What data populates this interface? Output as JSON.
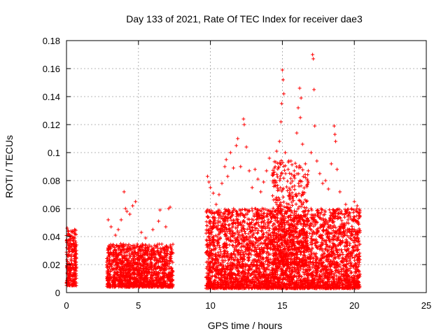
{
  "chart_data": {
    "type": "scatter",
    "title": "Day 133 of 2021, Rate Of TEC Index for receiver dae3",
    "xlabel": "GPS time / hours",
    "ylabel": "ROTI / TECUs",
    "xlim": [
      0,
      25
    ],
    "ylim": [
      0,
      0.18
    ],
    "xticks": [
      "0",
      "5",
      "10",
      "15",
      "20",
      "25"
    ],
    "yticks": [
      "0",
      "0.02",
      "0.04",
      "0.06",
      "0.08",
      "0.1",
      "0.12",
      "0.14",
      "0.16",
      "0.18"
    ],
    "grid": true,
    "marker": "+",
    "color": "#ff0000",
    "clusters": [
      {
        "x_range": [
          0.0,
          0.7
        ],
        "y_range": [
          0.005,
          0.045
        ],
        "density": 260
      },
      {
        "x_range": [
          2.8,
          7.4
        ],
        "y_range": [
          0.004,
          0.035
        ],
        "density": 1400
      },
      {
        "x_range": [
          9.7,
          20.4
        ],
        "y_range": [
          0.003,
          0.06
        ],
        "density": 3800
      },
      {
        "x_range": [
          14.3,
          16.8
        ],
        "y_range": [
          0.02,
          0.095
        ],
        "density": 500
      }
    ],
    "series": [
      {
        "name": "",
        "values": [
          [
            0.05,
            0.046
          ],
          [
            0.1,
            0.044
          ],
          [
            0.15,
            0.041
          ],
          [
            0.25,
            0.038
          ],
          [
            0.3,
            0.035
          ],
          [
            0.2,
            0.032
          ],
          [
            0.4,
            0.03
          ],
          [
            0.35,
            0.04
          ],
          [
            0.5,
            0.037
          ],
          [
            0.45,
            0.034
          ],
          [
            2.9,
            0.052
          ],
          [
            3.1,
            0.047
          ],
          [
            3.4,
            0.041
          ],
          [
            3.6,
            0.045
          ],
          [
            3.8,
            0.052
          ],
          [
            4.0,
            0.072
          ],
          [
            4.1,
            0.06
          ],
          [
            4.2,
            0.058
          ],
          [
            4.4,
            0.056
          ],
          [
            4.6,
            0.062
          ],
          [
            4.8,
            0.065
          ],
          [
            5.2,
            0.043
          ],
          [
            5.5,
            0.039
          ],
          [
            6.0,
            0.045
          ],
          [
            6.4,
            0.051
          ],
          [
            6.5,
            0.059
          ],
          [
            6.9,
            0.047
          ],
          [
            7.1,
            0.06
          ],
          [
            7.2,
            0.061
          ],
          [
            9.8,
            0.083
          ],
          [
            9.9,
            0.079
          ],
          [
            10.0,
            0.075
          ],
          [
            10.2,
            0.071
          ],
          [
            10.4,
            0.063
          ],
          [
            10.6,
            0.07
          ],
          [
            10.8,
            0.078
          ],
          [
            11.0,
            0.09
          ],
          [
            11.1,
            0.095
          ],
          [
            11.2,
            0.083
          ],
          [
            11.4,
            0.1
          ],
          [
            11.6,
            0.089
          ],
          [
            11.8,
            0.105
          ],
          [
            11.9,
            0.11
          ],
          [
            12.1,
            0.09
          ],
          [
            12.3,
            0.124
          ],
          [
            12.35,
            0.12
          ],
          [
            12.5,
            0.104
          ],
          [
            12.7,
            0.087
          ],
          [
            12.9,
            0.075
          ],
          [
            13.1,
            0.088
          ],
          [
            13.3,
            0.081
          ],
          [
            13.5,
            0.072
          ],
          [
            13.7,
            0.079
          ],
          [
            13.9,
            0.087
          ],
          [
            14.1,
            0.096
          ],
          [
            14.3,
            0.084
          ],
          [
            14.5,
            0.09
          ],
          [
            14.6,
            0.101
          ],
          [
            14.8,
            0.108
          ],
          [
            14.9,
            0.122
          ],
          [
            15.0,
            0.159
          ],
          [
            15.05,
            0.152
          ],
          [
            15.1,
            0.142
          ],
          [
            14.95,
            0.135
          ],
          [
            15.2,
            0.1
          ],
          [
            15.4,
            0.088
          ],
          [
            15.6,
            0.094
          ],
          [
            15.8,
            0.083
          ],
          [
            16.0,
            0.114
          ],
          [
            16.1,
            0.132
          ],
          [
            16.2,
            0.146
          ],
          [
            16.25,
            0.125
          ],
          [
            16.3,
            0.139
          ],
          [
            16.4,
            0.106
          ],
          [
            16.6,
            0.092
          ],
          [
            16.8,
            0.087
          ],
          [
            17.0,
            0.1
          ],
          [
            17.1,
            0.17
          ],
          [
            17.15,
            0.167
          ],
          [
            17.2,
            0.145
          ],
          [
            17.25,
            0.119
          ],
          [
            17.4,
            0.094
          ],
          [
            17.6,
            0.085
          ],
          [
            17.8,
            0.078
          ],
          [
            18.0,
            0.08
          ],
          [
            18.2,
            0.074
          ],
          [
            18.4,
            0.092
          ],
          [
            18.6,
            0.119
          ],
          [
            18.65,
            0.113
          ],
          [
            18.7,
            0.108
          ],
          [
            18.8,
            0.088
          ],
          [
            19.0,
            0.072
          ],
          [
            19.4,
            0.063
          ],
          [
            19.8,
            0.06
          ],
          [
            20.0,
            0.065
          ],
          [
            20.2,
            0.062
          ],
          [
            20.3,
            0.055
          ]
        ]
      }
    ]
  }
}
